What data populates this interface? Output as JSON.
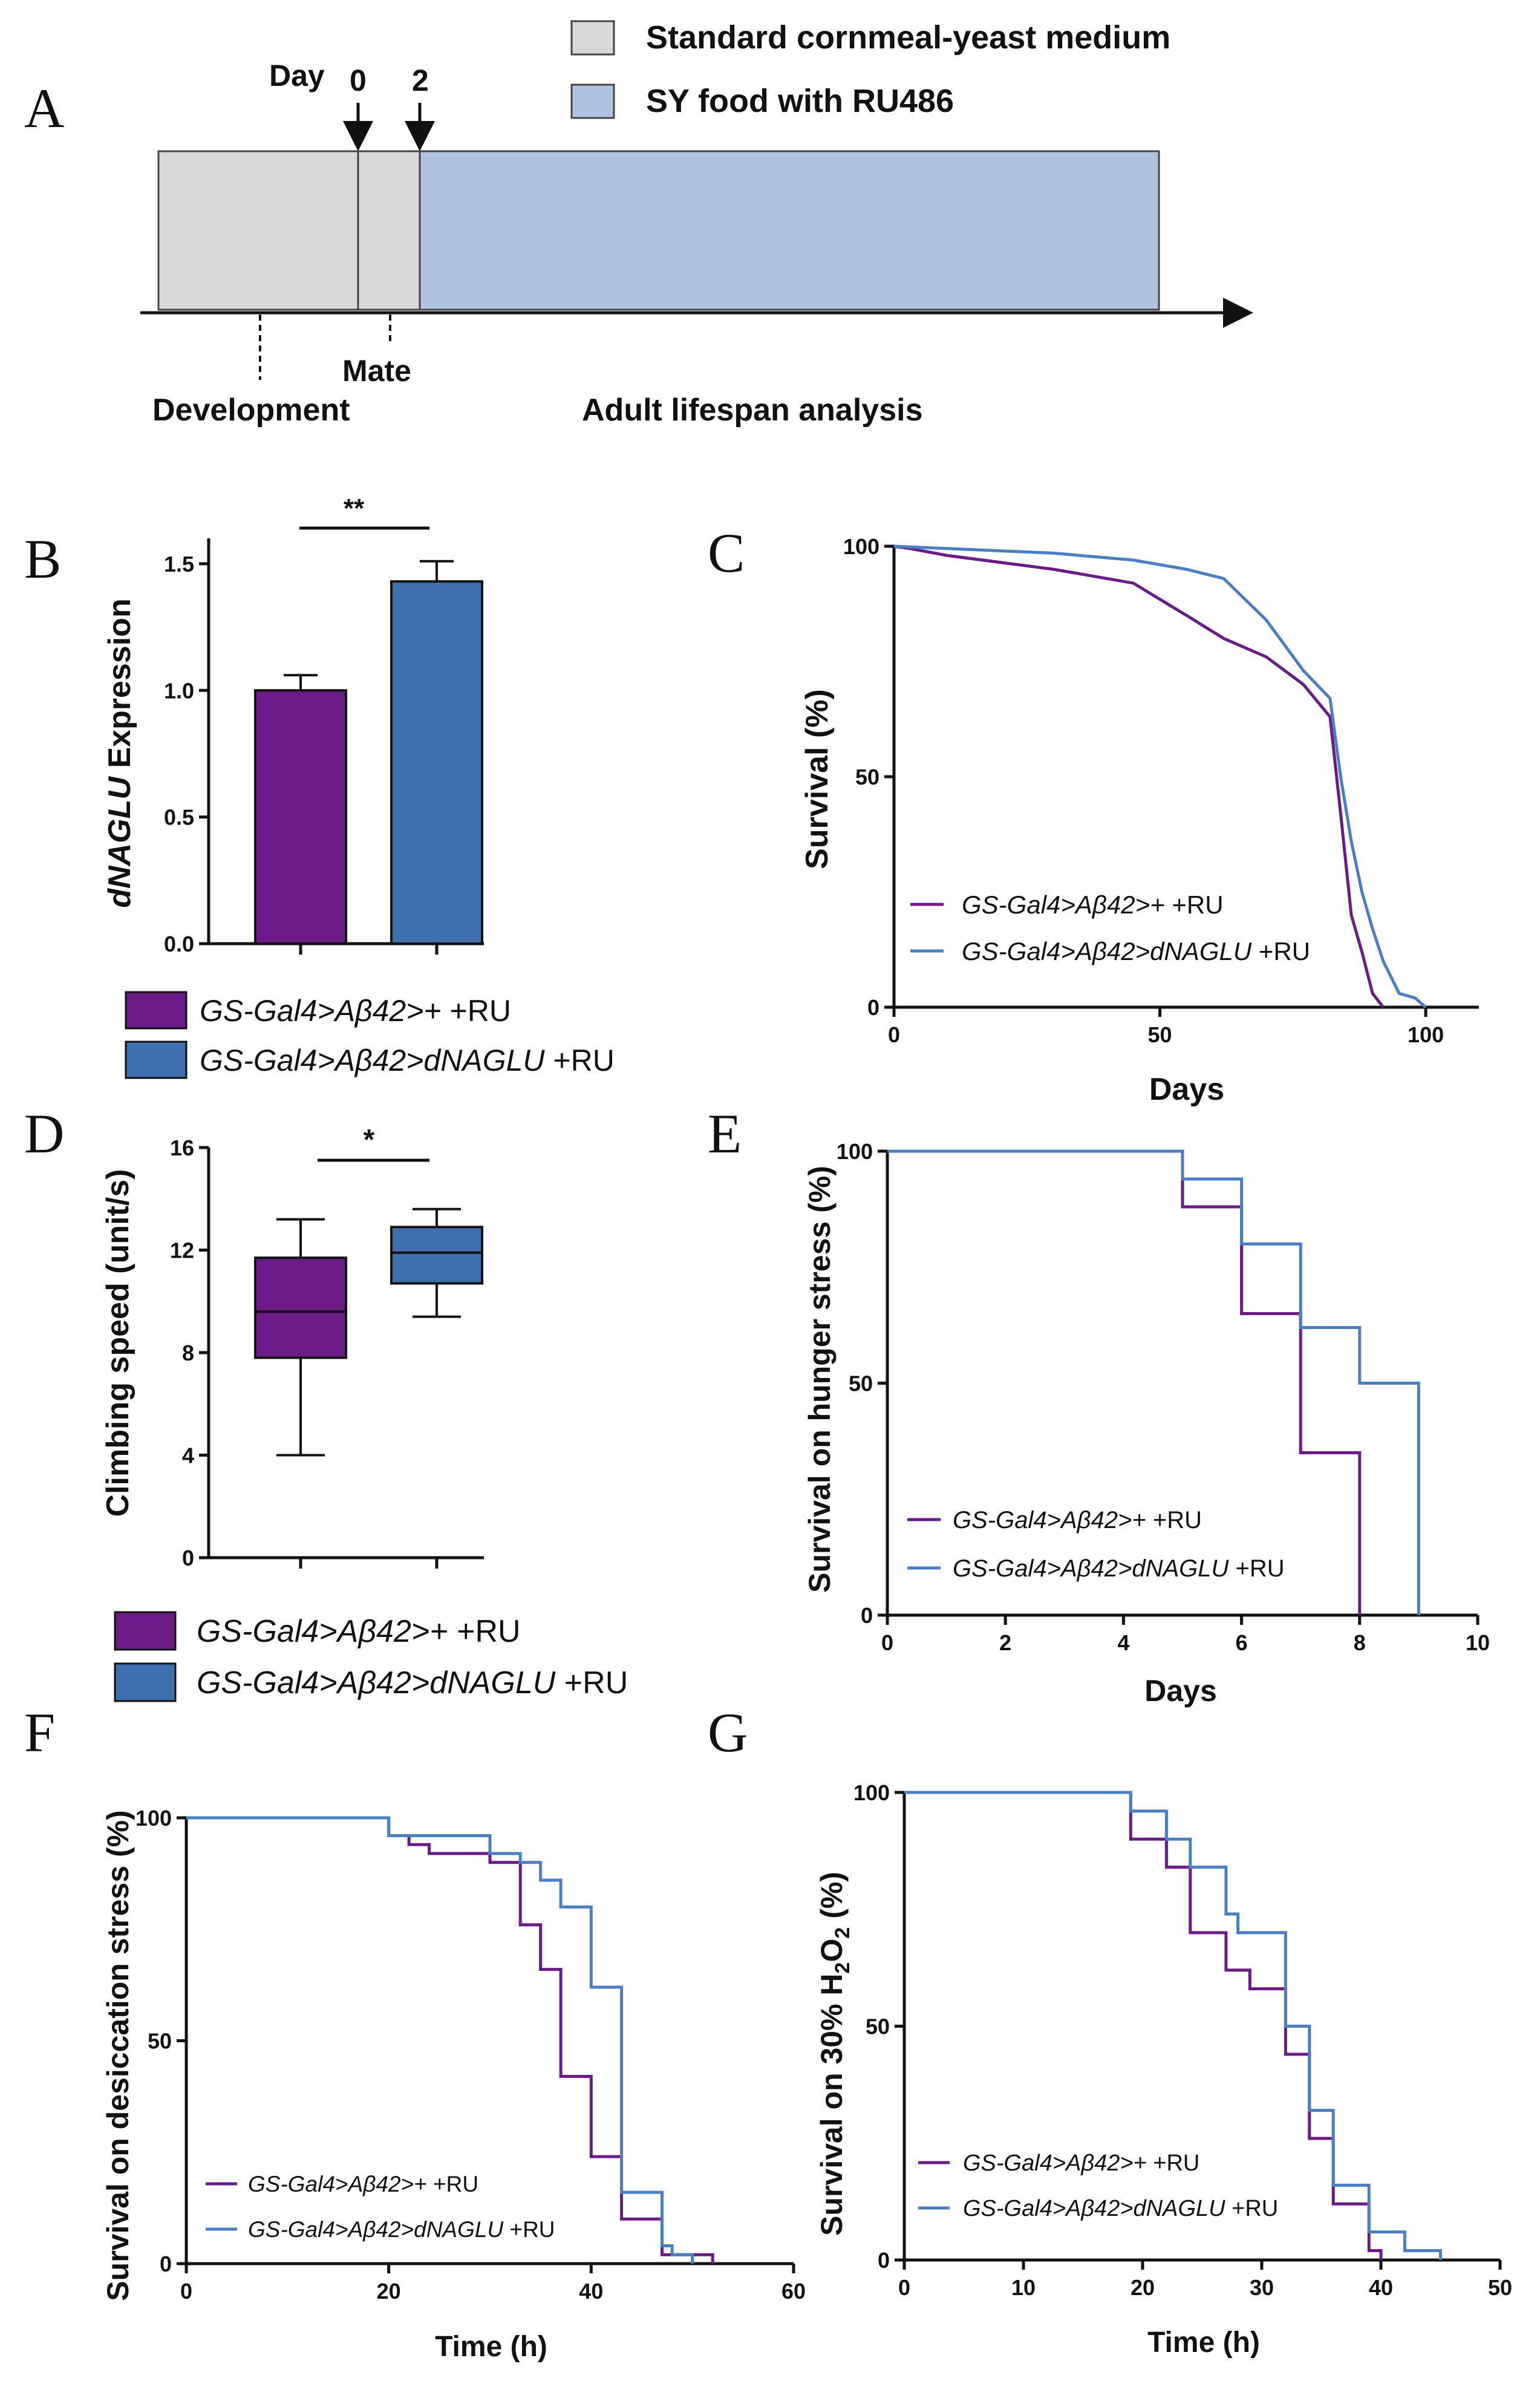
{
  "colors": {
    "purple": "#6a1b86",
    "blue": "#3f6fae",
    "line_blue": "#4a7fc4",
    "gray": "#d9d9d9",
    "lightblue": "#b0c3e0"
  },
  "panels": {
    "A": "A",
    "B": "B",
    "C": "C",
    "D": "D",
    "E": "E",
    "F": "F",
    "G": "G"
  },
  "groups": {
    "ctrl": "GS-Gal4>Aβ42>+",
    "exp": "GS-Gal4>Aβ42>dNAGLU",
    "ru": "+RU"
  },
  "schematic": {
    "legend_gray": "Standard cornmeal-yeast medium",
    "legend_blue": "SY food with RU486",
    "day_label": "Day",
    "day0": "0",
    "day2": "2",
    "mate": "Mate",
    "development": "Development",
    "adult": "Adult lifespan analysis"
  },
  "chart_data": [
    {
      "panel": "B",
      "type": "bar",
      "categories": [
        "GS-Gal4>Aβ42>+ +RU",
        "GS-Gal4>Aβ42>dNAGLU +RU"
      ],
      "values": [
        1.0,
        1.43
      ],
      "errors": [
        0.06,
        0.08
      ],
      "ylabel_italic": "dNAGLU",
      "ylabel_rest": " Expression",
      "ylim": [
        0,
        1.6
      ],
      "yticks": [
        "0.0",
        "0.5",
        "1.0",
        "1.5"
      ],
      "significance": "**"
    },
    {
      "panel": "C",
      "type": "line",
      "step": false,
      "xlabel": "Days",
      "ylabel": "Survival (%)",
      "xlim": [
        0,
        110
      ],
      "ylim": [
        0,
        100
      ],
      "xticks": [
        "0",
        "50",
        "100"
      ],
      "yticks": [
        "0",
        "50",
        "100"
      ],
      "series": [
        {
          "name": "GS-Gal4>Aβ42>+ +RU",
          "x": [
            0,
            3,
            10,
            20,
            30,
            45,
            55,
            62,
            70,
            77,
            82,
            84,
            86,
            88,
            90,
            92
          ],
          "y": [
            100,
            99.5,
            98,
            96.5,
            95,
            92,
            85,
            80,
            76,
            70,
            63,
            42,
            20,
            12,
            3,
            0
          ]
        },
        {
          "name": "GS-Gal4>Aβ42>dNAGLU +RU",
          "x": [
            0,
            10,
            30,
            45,
            55,
            62,
            70,
            77,
            82,
            84,
            86,
            88,
            90,
            92,
            95,
            98,
            100
          ],
          "y": [
            100,
            99.5,
            98.5,
            97,
            95,
            93,
            84,
            73,
            67,
            50,
            36,
            25,
            17,
            10,
            3,
            2,
            0
          ]
        }
      ]
    },
    {
      "panel": "D",
      "type": "box",
      "categories": [
        "GS-Gal4>Aβ42>+ +RU",
        "GS-Gal4>Aβ42>dNAGLU +RU"
      ],
      "boxes": [
        {
          "min": 4.0,
          "q1": 7.8,
          "median": 9.6,
          "q3": 11.7,
          "max": 13.2
        },
        {
          "min": 9.4,
          "q1": 10.7,
          "median": 11.9,
          "q3": 12.9,
          "max": 13.6
        }
      ],
      "ylabel": "Climbing speed (unit/s)",
      "ylim": [
        0,
        16
      ],
      "yticks": [
        "0",
        "4",
        "8",
        "12",
        "16"
      ],
      "significance": "*"
    },
    {
      "panel": "E",
      "type": "line",
      "step": true,
      "xlabel": "Days",
      "ylabel": "Survival on hunger stress (%)",
      "xlim": [
        0,
        10
      ],
      "ylim": [
        0,
        100
      ],
      "xticks": [
        "0",
        "2",
        "4",
        "6",
        "8",
        "10"
      ],
      "yticks": [
        "0",
        "50",
        "100"
      ],
      "series": [
        {
          "name": "GS-Gal4>Aβ42>+ +RU",
          "x": [
            0,
            5,
            6,
            7,
            8
          ],
          "y": [
            100,
            88,
            65,
            35,
            0
          ]
        },
        {
          "name": "GS-Gal4>Aβ42>dNAGLU +RU",
          "x": [
            0,
            5,
            6,
            7,
            8,
            9
          ],
          "y": [
            100,
            94,
            80,
            62,
            50,
            0
          ]
        }
      ]
    },
    {
      "panel": "F",
      "type": "line",
      "step": true,
      "xlabel": "Time (h)",
      "ylabel": "Survival on desiccation stress (%)",
      "xlim": [
        0,
        60
      ],
      "ylim": [
        0,
        100
      ],
      "xticks": [
        "0",
        "20",
        "40",
        "60"
      ],
      "yticks": [
        "0",
        "50",
        "100"
      ],
      "series": [
        {
          "name": "GS-Gal4>Aβ42>+ +RU",
          "x": [
            0,
            20,
            22,
            24,
            30,
            33,
            35,
            37,
            40,
            43,
            47,
            49,
            52
          ],
          "y": [
            100,
            96,
            94,
            92,
            90,
            76,
            66,
            42,
            24,
            10,
            2,
            2,
            0
          ]
        },
        {
          "name": "GS-Gal4>Aβ42>dNAGLU +RU",
          "x": [
            0,
            20,
            24,
            30,
            33,
            35,
            37,
            40,
            43,
            47,
            48,
            50
          ],
          "y": [
            100,
            96,
            96,
            92,
            90,
            86,
            80,
            62,
            16,
            4,
            2,
            0
          ]
        }
      ]
    },
    {
      "panel": "G",
      "type": "line",
      "step": true,
      "xlabel": "Time (h)",
      "ylabel_pre": "Survival on 30% H",
      "ylabel_sub1": "2",
      "ylabel_mid": "O",
      "ylabel_sub2": "2",
      "ylabel_post": " (%)",
      "xlim": [
        0,
        50
      ],
      "ylim": [
        0,
        100
      ],
      "xticks": [
        "0",
        "10",
        "20",
        "30",
        "40",
        "50"
      ],
      "yticks": [
        "0",
        "50",
        "100"
      ],
      "series": [
        {
          "name": "GS-Gal4>Aβ42>+ +RU",
          "x": [
            0,
            19,
            22,
            24,
            27,
            29,
            32,
            34,
            36,
            39,
            40
          ],
          "y": [
            100,
            90,
            84,
            70,
            62,
            58,
            44,
            26,
            12,
            2,
            0
          ]
        },
        {
          "name": "GS-Gal4>Aβ42>dNAGLU +RU",
          "x": [
            0,
            19,
            22,
            24,
            27,
            28,
            32,
            34,
            36,
            39,
            42,
            45
          ],
          "y": [
            100,
            96,
            90,
            84,
            74,
            70,
            50,
            32,
            16,
            6,
            2,
            0
          ]
        }
      ]
    }
  ]
}
